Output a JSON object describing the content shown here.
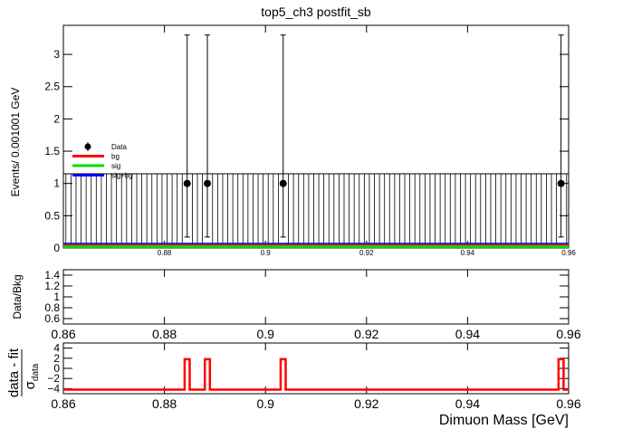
{
  "chart_data": [
    {
      "id": "main",
      "type": "scatter",
      "title": "top5_ch3   postfit_sb",
      "ylabel": "Events/ 0.001001 GeV",
      "xlim": [
        0.86,
        0.96
      ],
      "ylim": [
        0,
        3.45
      ],
      "x_ticks": [
        0.88,
        0.9,
        0.92,
        0.94,
        0.96
      ],
      "x_tick_labels": [
        "0.88",
        "0.9",
        "0.92",
        "0.94",
        "0.96"
      ],
      "y_ticks": [
        0,
        0.5,
        1,
        1.5,
        2,
        2.5,
        3
      ],
      "y_tick_labels": [
        "0",
        "0.5",
        "1",
        "1.5",
        "2",
        "2.5",
        "3"
      ],
      "legend": {
        "placement": "left",
        "entries": [
          {
            "label": "Data",
            "style": "marker",
            "color": "#000000"
          },
          {
            "label": "bg",
            "style": "line",
            "color": "#ff0000"
          },
          {
            "label": "sig",
            "style": "line",
            "color": "#00dd00"
          },
          {
            "label": "sig+bg",
            "style": "line",
            "color": "#0000ff"
          }
        ]
      },
      "data_points": [
        {
          "x": 0.8845,
          "y": 1,
          "err_low": 0.83,
          "err_high": 2.3
        },
        {
          "x": 0.8885,
          "y": 1,
          "err_low": 0.83,
          "err_high": 2.3
        },
        {
          "x": 0.9035,
          "y": 1,
          "err_low": 0.83,
          "err_high": 2.3
        },
        {
          "x": 0.9585,
          "y": 1,
          "err_low": 0.83,
          "err_high": 2.3
        }
      ],
      "empty_bin_error_top": 1.15,
      "bin_width": 0.001001,
      "bg_level": 0.04,
      "sig_level": 0.02,
      "sigbg_level": 0.06
    },
    {
      "id": "ratio",
      "type": "scatter",
      "ylabel": "Data/Bkg",
      "xlim": [
        0.86,
        0.96
      ],
      "ylim": [
        0.5,
        1.5
      ],
      "x_ticks": [
        0.86,
        0.88,
        0.9,
        0.92,
        0.94,
        0.96
      ],
      "x_tick_labels": [
        "0.86",
        "0.88",
        "0.9",
        "0.92",
        "0.94",
        "0.96"
      ],
      "y_ticks": [
        0.6,
        0.8,
        1,
        1.2,
        1.4
      ],
      "y_tick_labels": [
        "0.6",
        "0.8",
        "1",
        "1.2",
        "1.4"
      ],
      "values": []
    },
    {
      "id": "pull",
      "type": "line",
      "ylabel_num": "data - fit",
      "ylabel_den": "σ",
      "ylabel_sub": "data",
      "xlabel": "Dimuon Mass [GeV]",
      "xlim": [
        0.86,
        0.96
      ],
      "ylim": [
        -5,
        5
      ],
      "x_ticks": [
        0.86,
        0.88,
        0.9,
        0.92,
        0.94,
        0.96
      ],
      "x_tick_labels": [
        "0.86",
        "0.88",
        "0.9",
        "0.92",
        "0.94",
        "0.96"
      ],
      "y_ticks": [
        -4,
        -2,
        0,
        2,
        4
      ],
      "y_tick_labels": [
        "−4",
        "−2",
        "0",
        "2",
        "4"
      ],
      "baseline": -4.2,
      "spikes": [
        {
          "x0": 0.884,
          "x1": 0.885,
          "y": 1.8
        },
        {
          "x0": 0.888,
          "x1": 0.889,
          "y": 1.8
        },
        {
          "x0": 0.903,
          "x1": 0.904,
          "y": 1.8
        },
        {
          "x0": 0.958,
          "x1": 0.959,
          "y": 1.8
        }
      ],
      "color": "#ff0000"
    }
  ]
}
